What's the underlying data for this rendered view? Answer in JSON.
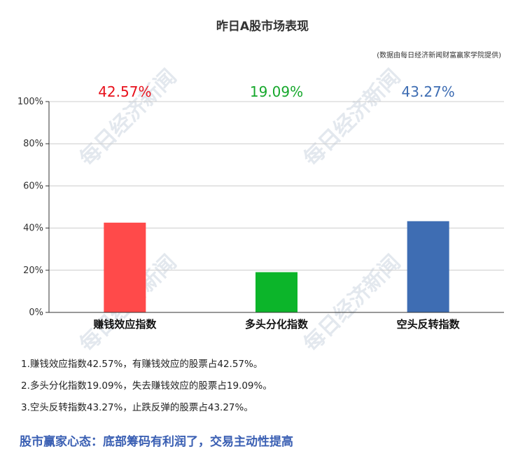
{
  "chart_data": {
    "type": "bar",
    "title": "昨日A股市场表现",
    "subtitle": "(数据由每日经济新闻财富赢家学院提供)",
    "categories": [
      "赚钱效应指数",
      "多头分化指数",
      "空头反转指数"
    ],
    "values": [
      42.57,
      19.09,
      43.27
    ],
    "value_labels": [
      "42.57%",
      "19.09%",
      "43.27%"
    ],
    "colors": [
      "#ff4a4a",
      "#0cb52a",
      "#3e6db3"
    ],
    "value_label_colors": [
      "#e8101b",
      "#16a82c",
      "#3e6db3"
    ],
    "ylim": [
      0,
      100
    ],
    "yticks": [
      0,
      20,
      40,
      60,
      80,
      100
    ],
    "ytick_labels": [
      "0%",
      "20%",
      "40%",
      "60%",
      "80%",
      "100%"
    ],
    "grid": true,
    "xlabel": "",
    "ylabel": ""
  },
  "watermark_text": "每日经济新闻",
  "notes": [
    "1.赚钱效应指数42.57%，有赚钱效应的股票占42.57%。",
    "2.多头分化指数19.09%，失去赚钱效应的股票占19.09%。",
    "3.空头反转指数43.27%，止跌反弹的股票占43.27%。"
  ],
  "headline": "股市赢家心态：底部筹码有利润了，交易主动性提高",
  "colors": {
    "headline": "#3a5fb3",
    "grid": "#cccccc",
    "axis": "#333333"
  }
}
